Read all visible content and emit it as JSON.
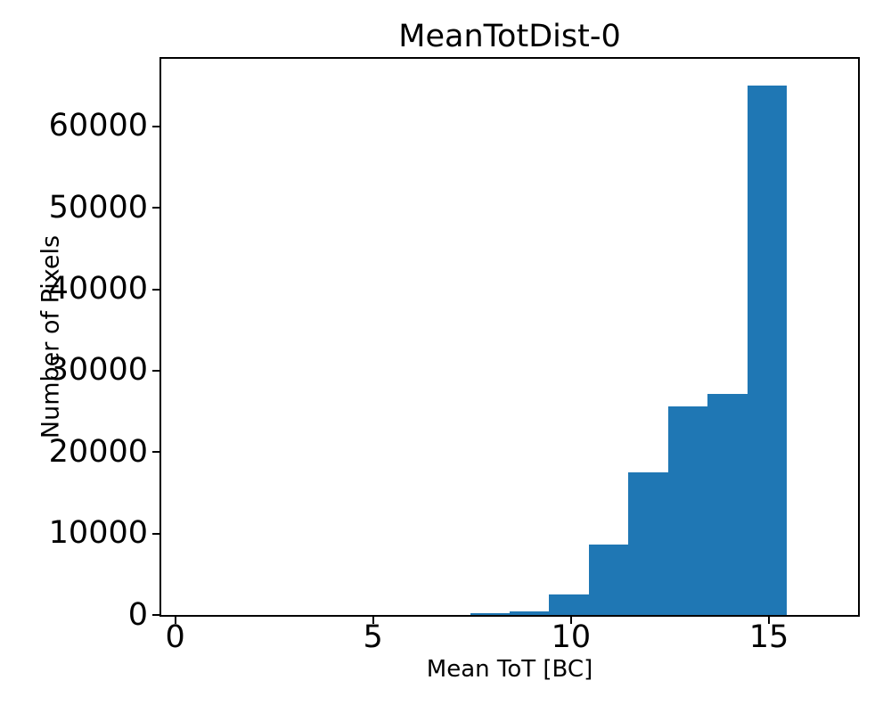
{
  "chart_data": {
    "type": "bar",
    "subtype": "histogram",
    "title": "MeanTotDist-0",
    "xlabel": "Mean ToT [BC]",
    "ylabel": "Number of Pixels",
    "bar_color": "#1f77b4",
    "axis_color": "#000000",
    "background_color": "#ffffff",
    "grid": false,
    "legend": false,
    "xlim": [
      -0.35,
      17.25
    ],
    "ylim": [
      0,
      68300
    ],
    "xticks": [
      0,
      5,
      10,
      15
    ],
    "yticks": [
      0,
      10000,
      20000,
      30000,
      40000,
      50000,
      60000
    ],
    "bin_edges": [
      7.45,
      8.45,
      9.45,
      10.45,
      11.45,
      12.45,
      13.45,
      14.45,
      15.45
    ],
    "counts": [
      220,
      450,
      2500,
      8700,
      17500,
      25600,
      27100,
      65000
    ]
  }
}
